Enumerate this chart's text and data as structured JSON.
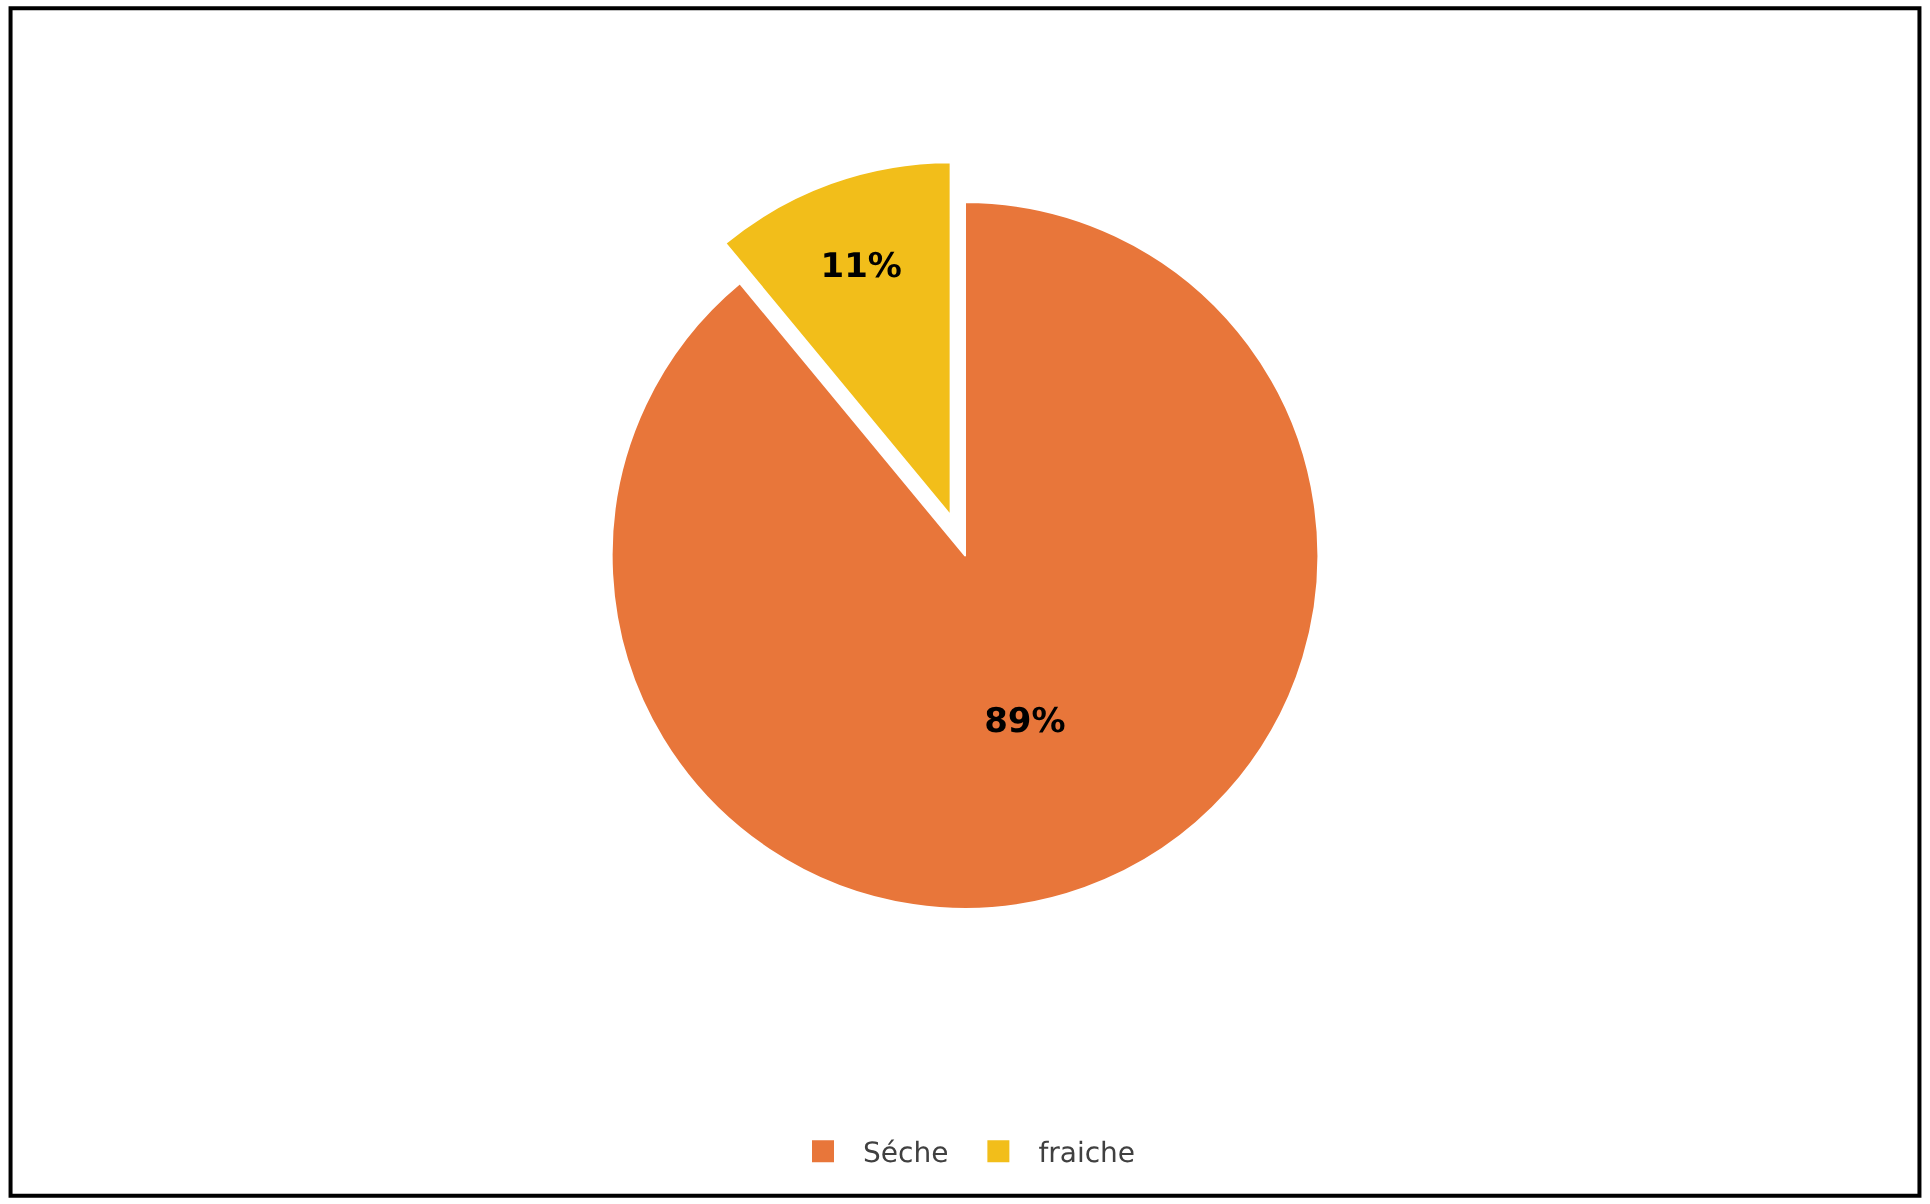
{
  "chart_data": {
    "type": "pie",
    "categories": [
      "Séche",
      "fraiche"
    ],
    "values": [
      89,
      11
    ],
    "colors": [
      "#e8763a",
      "#f2be1a"
    ],
    "value_labels": [
      "89%",
      "11%"
    ],
    "legend": "bottom"
  }
}
